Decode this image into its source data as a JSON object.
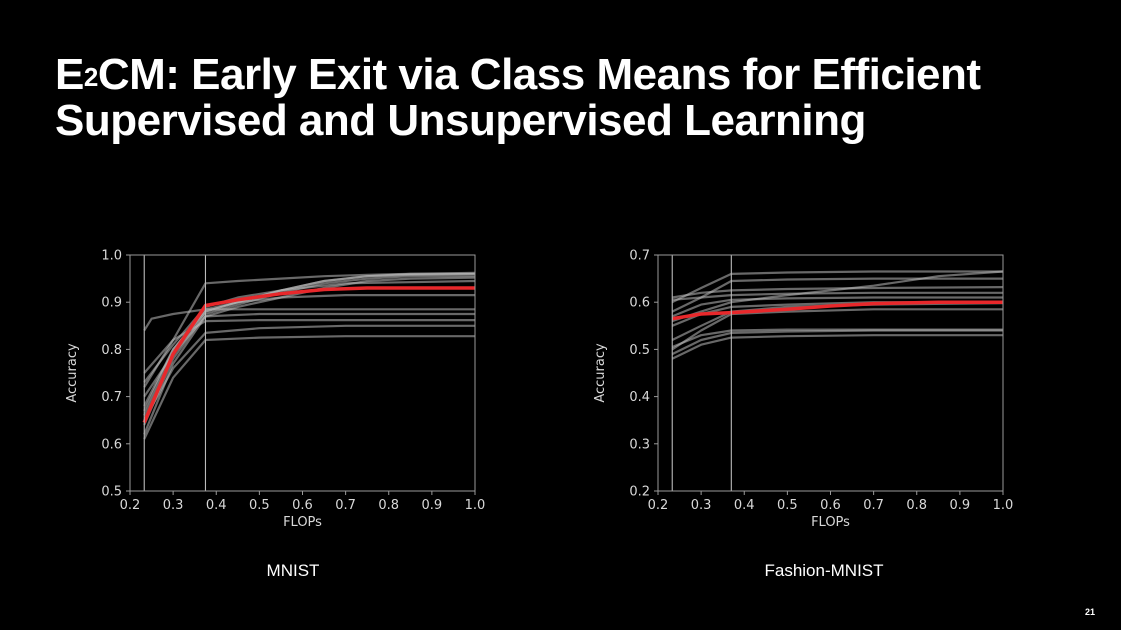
{
  "slide": {
    "title_prefix": "E",
    "title_sup": "2",
    "title_rest": "CM: Early Exit via Class Means for Efficient Supervised and Unsupervised Learning",
    "slide_number": "21"
  },
  "chart_data": [
    {
      "type": "line",
      "caption": "MNIST",
      "xlabel": "FLOPs",
      "ylabel": "Accuracy",
      "xlim": [
        0.2,
        1.0
      ],
      "ylim": [
        0.5,
        1.0
      ],
      "xticks": [
        "0.2",
        "0.3",
        "0.4",
        "0.5",
        "0.6",
        "0.7",
        "0.8",
        "0.9",
        "1.0"
      ],
      "yticks": [
        "0.5",
        "0.6",
        "0.7",
        "0.8",
        "0.9",
        "1.0"
      ],
      "vlines": [
        0.233,
        0.375
      ],
      "colors": {
        "background": "#000000",
        "runs": "#bdbdbd",
        "mean": "#e8282b",
        "axis": "#9a9a9a"
      },
      "runs": [
        {
          "x": [
            0.233,
            0.25,
            0.3,
            0.375,
            0.5,
            0.6,
            0.7,
            0.8,
            1.0
          ],
          "y": [
            0.84,
            0.865,
            0.875,
            0.885,
            0.885,
            0.885,
            0.885,
            0.885,
            0.885
          ]
        },
        {
          "x": [
            0.233,
            0.3,
            0.375,
            0.45,
            0.55,
            0.65,
            0.75,
            0.85,
            1.0
          ],
          "y": [
            0.72,
            0.82,
            0.94,
            0.945,
            0.95,
            0.955,
            0.958,
            0.96,
            0.96
          ]
        },
        {
          "x": [
            0.233,
            0.3,
            0.375,
            0.45,
            0.55,
            0.65,
            0.75,
            0.85,
            1.0
          ],
          "y": [
            0.66,
            0.79,
            0.88,
            0.9,
            0.925,
            0.945,
            0.955,
            0.958,
            0.96
          ]
        },
        {
          "x": [
            0.233,
            0.3,
            0.375,
            0.45,
            0.55,
            0.65,
            0.75,
            0.85,
            1.0
          ],
          "y": [
            0.64,
            0.78,
            0.875,
            0.895,
            0.92,
            0.94,
            0.95,
            0.955,
            0.955
          ]
        },
        {
          "x": [
            0.233,
            0.3,
            0.375,
            0.45,
            0.55,
            0.65,
            0.75,
            0.85,
            1.0
          ],
          "y": [
            0.62,
            0.77,
            0.87,
            0.89,
            0.91,
            0.93,
            0.945,
            0.95,
            0.952
          ]
        },
        {
          "x": [
            0.233,
            0.3,
            0.375,
            0.45,
            0.55,
            0.65,
            0.75,
            0.85,
            1.0
          ],
          "y": [
            0.68,
            0.8,
            0.88,
            0.9,
            0.925,
            0.945,
            0.955,
            0.96,
            0.962
          ]
        },
        {
          "x": [
            0.233,
            0.3,
            0.375,
            0.5,
            0.7,
            1.0
          ],
          "y": [
            0.61,
            0.74,
            0.82,
            0.825,
            0.828,
            0.828
          ]
        },
        {
          "x": [
            0.233,
            0.3,
            0.375,
            0.5,
            0.7,
            1.0
          ],
          "y": [
            0.7,
            0.79,
            0.87,
            0.875,
            0.875,
            0.875
          ]
        },
        {
          "x": [
            0.233,
            0.3,
            0.375,
            0.5,
            0.7,
            1.0
          ],
          "y": [
            0.75,
            0.82,
            0.86,
            0.862,
            0.862,
            0.862
          ]
        },
        {
          "x": [
            0.233,
            0.3,
            0.375,
            0.45,
            0.55,
            0.7,
            1.0
          ],
          "y": [
            0.67,
            0.8,
            0.885,
            0.9,
            0.91,
            0.915,
            0.915
          ]
        },
        {
          "x": [
            0.233,
            0.3,
            0.375,
            0.45,
            0.55,
            0.7,
            1.0
          ],
          "y": [
            0.73,
            0.81,
            0.89,
            0.91,
            0.925,
            0.94,
            0.945
          ]
        },
        {
          "x": [
            0.233,
            0.3,
            0.375,
            0.5,
            0.7,
            1.0
          ],
          "y": [
            0.65,
            0.76,
            0.835,
            0.845,
            0.85,
            0.85
          ]
        }
      ],
      "mean": {
        "x": [
          0.233,
          0.3,
          0.375,
          0.45,
          0.55,
          0.65,
          0.75,
          0.85,
          1.0
        ],
        "y": [
          0.645,
          0.79,
          0.893,
          0.905,
          0.918,
          0.927,
          0.93,
          0.93,
          0.93
        ]
      }
    },
    {
      "type": "line",
      "caption": "Fashion-MNIST",
      "xlabel": "FLOPs",
      "ylabel": "Accuracy",
      "xlim": [
        0.2,
        1.0
      ],
      "ylim": [
        0.2,
        0.7
      ],
      "xticks": [
        "0.2",
        "0.3",
        "0.4",
        "0.5",
        "0.6",
        "0.7",
        "0.8",
        "0.9",
        "1.0"
      ],
      "yticks": [
        "0.2",
        "0.3",
        "0.4",
        "0.5",
        "0.6",
        "0.7"
      ],
      "vlines": [
        0.233,
        0.37
      ],
      "colors": {
        "background": "#000000",
        "runs": "#bdbdbd",
        "mean": "#e8282b",
        "axis": "#9a9a9a"
      },
      "runs": [
        {
          "x": [
            0.233,
            0.3,
            0.37,
            0.5,
            0.7,
            1.0
          ],
          "y": [
            0.6,
            0.63,
            0.66,
            0.663,
            0.665,
            0.665
          ]
        },
        {
          "x": [
            0.233,
            0.3,
            0.37,
            0.5,
            0.7,
            1.0
          ],
          "y": [
            0.58,
            0.61,
            0.645,
            0.648,
            0.65,
            0.65
          ]
        },
        {
          "x": [
            0.233,
            0.3,
            0.37,
            0.5,
            0.7,
            0.85,
            1.0
          ],
          "y": [
            0.56,
            0.58,
            0.6,
            0.615,
            0.635,
            0.655,
            0.665
          ]
        },
        {
          "x": [
            0.233,
            0.3,
            0.37,
            0.5,
            0.7,
            1.0
          ],
          "y": [
            0.61,
            0.62,
            0.625,
            0.628,
            0.63,
            0.632
          ]
        },
        {
          "x": [
            0.233,
            0.3,
            0.37,
            0.5,
            0.7,
            1.0
          ],
          "y": [
            0.605,
            0.61,
            0.615,
            0.618,
            0.62,
            0.62
          ]
        },
        {
          "x": [
            0.233,
            0.3,
            0.37,
            0.5,
            0.7,
            1.0
          ],
          "y": [
            0.57,
            0.595,
            0.605,
            0.608,
            0.61,
            0.61
          ]
        },
        {
          "x": [
            0.233,
            0.3,
            0.37,
            0.5,
            0.7,
            1.0
          ],
          "y": [
            0.55,
            0.575,
            0.59,
            0.595,
            0.6,
            0.6
          ]
        },
        {
          "x": [
            0.233,
            0.3,
            0.37,
            0.5,
            0.7,
            1.0
          ],
          "y": [
            0.5,
            0.54,
            0.575,
            0.58,
            0.585,
            0.585
          ]
        },
        {
          "x": [
            0.233,
            0.3,
            0.37,
            0.5,
            0.7,
            1.0
          ],
          "y": [
            0.52,
            0.55,
            0.58,
            0.59,
            0.595,
            0.598
          ]
        },
        {
          "x": [
            0.233,
            0.3,
            0.37,
            0.5,
            0.7,
            1.0
          ],
          "y": [
            0.48,
            0.51,
            0.525,
            0.528,
            0.53,
            0.53
          ]
        },
        {
          "x": [
            0.233,
            0.3,
            0.37,
            0.5,
            0.7,
            1.0
          ],
          "y": [
            0.49,
            0.52,
            0.535,
            0.538,
            0.54,
            0.54
          ]
        },
        {
          "x": [
            0.233,
            0.3,
            0.37,
            0.5,
            0.7,
            1.0
          ],
          "y": [
            0.505,
            0.53,
            0.54,
            0.542,
            0.542,
            0.542
          ]
        }
      ],
      "mean": {
        "x": [
          0.233,
          0.3,
          0.37,
          0.5,
          0.6,
          0.7,
          0.85,
          1.0
        ],
        "y": [
          0.565,
          0.575,
          0.578,
          0.585,
          0.592,
          0.597,
          0.6,
          0.6
        ]
      }
    }
  ]
}
